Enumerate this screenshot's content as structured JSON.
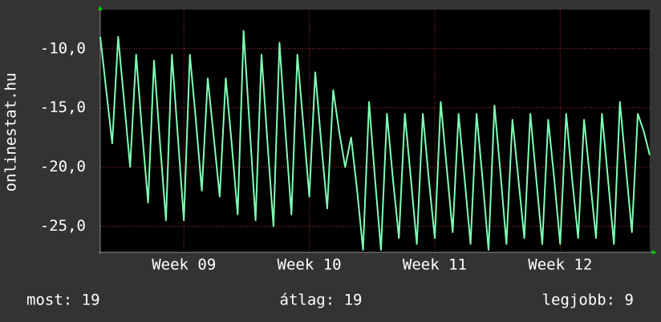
{
  "chart_data": {
    "type": "line",
    "ylabel": "onlinestat.hu",
    "color": "#80ffb4",
    "grid": true,
    "values": [
      -9,
      -13.5,
      -18,
      -9,
      -14.5,
      -20,
      -10.5,
      -17,
      -23,
      -11,
      -18,
      -24.5,
      -10.5,
      -17.5,
      -24.5,
      -10.5,
      -16,
      -22,
      -12.5,
      -17.5,
      -22.5,
      -12.5,
      -18,
      -24,
      -8.5,
      -16.5,
      -24.5,
      -10.5,
      -18,
      -25,
      -9.5,
      -17,
      -24,
      -10.5,
      -16.5,
      -22.5,
      -12,
      -18,
      -23.5,
      -13.5,
      -17,
      -20,
      -17.5,
      -22,
      -27,
      -14.5,
      -21,
      -27,
      -15.5,
      -21,
      -26,
      -15.5,
      -21,
      -26.5,
      -15.5,
      -21,
      -26,
      -14.5,
      -20,
      -25.5,
      -15.5,
      -21,
      -26.5,
      -15.5,
      -21,
      -27,
      -14.8,
      -20.5,
      -26.5,
      -16,
      -21,
      -26,
      -15.5,
      -21,
      -26.5,
      -16,
      -21,
      -26.5,
      -15.5,
      -21,
      -26,
      -16,
      -21,
      -26,
      -15.5,
      -21,
      -26.5,
      -14.5,
      -20,
      -25.5,
      -15.5,
      -17,
      -19
    ],
    "xlim": [
      0,
      92
    ],
    "xticks": [
      {
        "value": 14,
        "label": "Week 09"
      },
      {
        "value": 35,
        "label": "Week 10"
      },
      {
        "value": 56,
        "label": "Week 11"
      },
      {
        "value": 77,
        "label": "Week 12"
      }
    ],
    "ylim": [
      -27.2,
      -6.7
    ],
    "yticks": [
      {
        "value": -10,
        "label": "-10,0"
      },
      {
        "value": -15,
        "label": "-15,0"
      },
      {
        "value": -20,
        "label": "-20,0"
      },
      {
        "value": -25,
        "label": "-25,0"
      }
    ],
    "footer": [
      "most: 19",
      "átlag: 19",
      "legjobb: 9"
    ]
  }
}
